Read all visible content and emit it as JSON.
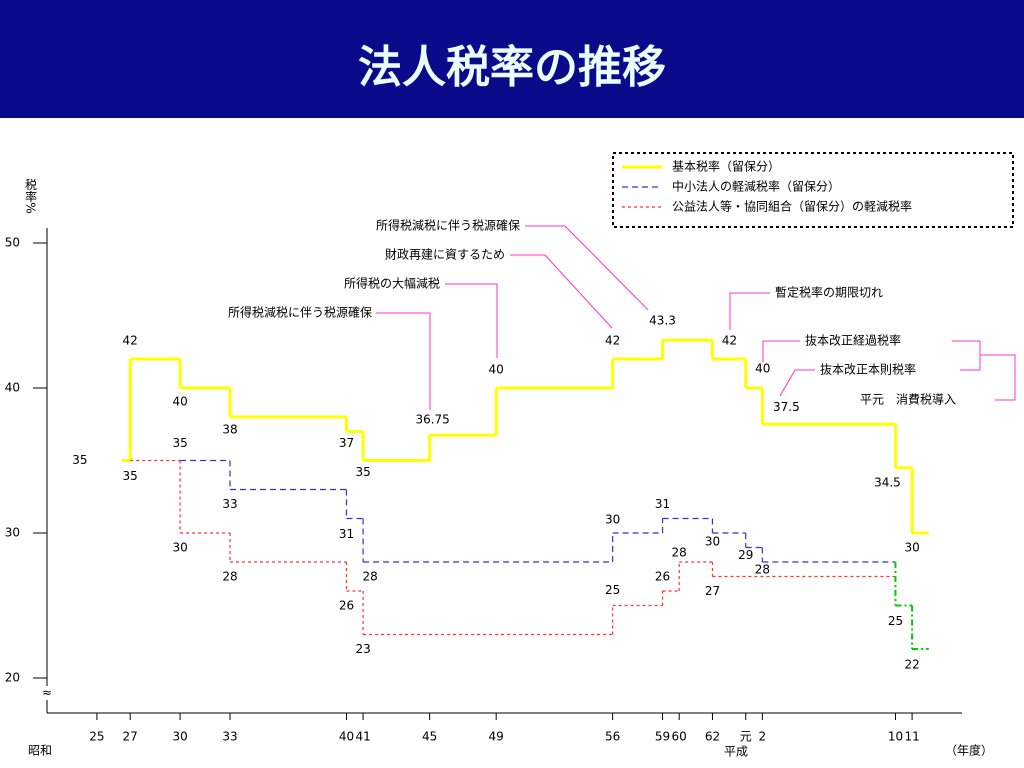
{
  "title": "法人税率の推移",
  "chart_data": {
    "type": "step",
    "ylabel": "税率%",
    "xlabel": "（年度）",
    "era_labels": [
      "昭和",
      "平成"
    ],
    "xlim": [
      22,
      77
    ],
    "xticks": [
      25,
      27,
      30,
      33,
      40,
      41,
      45,
      49,
      56,
      59,
      60,
      62,
      {
        "value": 64,
        "label": "元"
      },
      {
        "value": 65,
        "label": "2"
      },
      {
        "value": 73,
        "label": "10"
      },
      {
        "value": 74,
        "label": "11"
      }
    ],
    "ylim": [
      20,
      50
    ],
    "yticks": [
      20,
      30,
      40,
      50
    ],
    "series": [
      {
        "name": "基本税率（留保分）",
        "color": "#ffff00",
        "x": [
          26.5,
          27,
          30,
          33,
          40,
          41,
          45,
          49,
          56,
          59,
          62,
          64,
          65,
          73,
          74
        ],
        "x_end": 75,
        "values": [
          35,
          42,
          40,
          38,
          37,
          35,
          36.75,
          40,
          42,
          43.3,
          42,
          40,
          37.5,
          34.5,
          30
        ]
      },
      {
        "name": "中小法人の軽減税率（留保分）",
        "color": "#3333cc",
        "x": [
          30,
          33,
          40,
          41,
          56,
          59,
          62,
          64,
          65
        ],
        "x_end": 73,
        "values": [
          35,
          33,
          31,
          28,
          30,
          31,
          30,
          29,
          28
        ]
      },
      {
        "name": "公益法人等・協同組合（留保分）の軽減税率",
        "color": "#ff3333",
        "x": [
          27,
          30,
          33,
          40,
          41,
          56,
          59,
          60,
          62
        ],
        "x_end": 73,
        "values": [
          35,
          30,
          28,
          26,
          23,
          25,
          26,
          28,
          27
        ]
      },
      {
        "color": "#00cc00",
        "x": [
          73,
          74
        ],
        "x_end": 75,
        "values": [
          25,
          22
        ]
      }
    ],
    "annotations": [
      "所得税減税に伴う税源確保",
      "財政再建に資するため",
      "所得税の大幅減税",
      "所得税減税に伴う税源確保",
      "暫定税率の期限切れ",
      "抜本改正経過税率",
      "抜本改正本則税率",
      "平元　消費税導入"
    ]
  }
}
